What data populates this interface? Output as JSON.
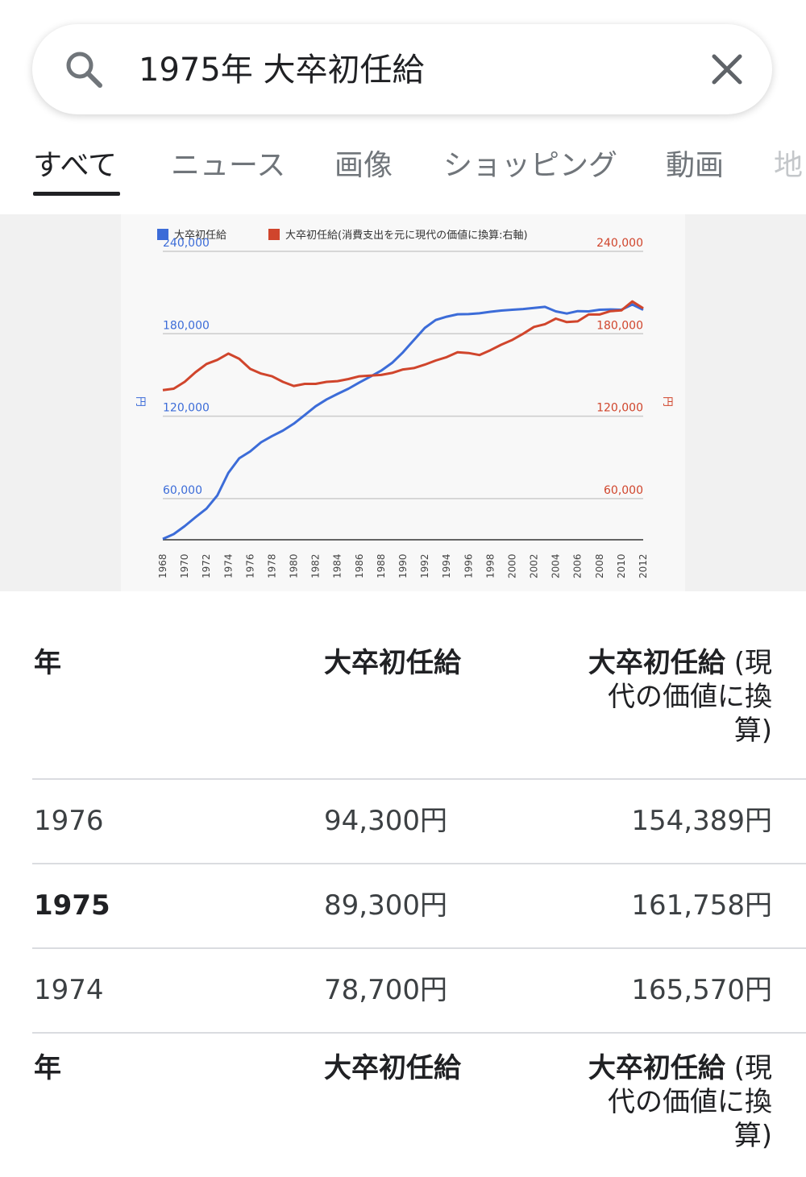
{
  "search": {
    "query": "1975年 大卒初任給"
  },
  "tabs": [
    {
      "label": "すべて",
      "active": true
    },
    {
      "label": "ニュース"
    },
    {
      "label": "画像"
    },
    {
      "label": "ショッピング"
    },
    {
      "label": "動画"
    },
    {
      "label": "地"
    }
  ],
  "chart_data": {
    "type": "line",
    "legend": [
      "大卒初任給",
      "大卒初任給(消費支出を元に現代の価値に換算:右軸)"
    ],
    "y_left_label": "円",
    "y_right_label": "円",
    "y_ticks": [
      "60,000",
      "120,000",
      "180,000",
      "240,000"
    ],
    "ylim": [
      30000,
      240000
    ],
    "x_ticks": [
      "1968",
      "1970",
      "1972",
      "1974",
      "1976",
      "1978",
      "1980",
      "1982",
      "1984",
      "1986",
      "1988",
      "1990",
      "1992",
      "1994",
      "1996",
      "1998",
      "2000",
      "2002",
      "2004",
      "2006",
      "2008",
      "2010",
      "2012"
    ],
    "x": [
      1968,
      1969,
      1970,
      1971,
      1972,
      1973,
      1974,
      1975,
      1976,
      1977,
      1978,
      1979,
      1980,
      1981,
      1982,
      1983,
      1984,
      1985,
      1986,
      1987,
      1988,
      1989,
      1990,
      1991,
      1992,
      1993,
      1994,
      1995,
      1996,
      1997,
      1998,
      1999,
      2000,
      2001,
      2002,
      2003,
      2004,
      2005,
      2006,
      2007,
      2008,
      2009,
      2010,
      2011,
      2012
    ],
    "series": [
      {
        "name": "大卒初任給",
        "color": "#3c6cd8",
        "values": [
          30600,
          34100,
          39900,
          46400,
          52700,
          62300,
          78700,
          89300,
          94300,
          101000,
          105500,
          109500,
          114500,
          120800,
          127200,
          132200,
          136200,
          140000,
          144500,
          148700,
          153100,
          158800,
          166500,
          175400,
          184300,
          190000,
          192400,
          194200,
          194300,
          194900,
          196000,
          196900,
          197500,
          198000,
          198800,
          199600,
          196300,
          194700,
          196500,
          196300,
          197500,
          197700,
          197500,
          201300,
          197500
        ]
      },
      {
        "name": "大卒初任給(消費支出を元に現代の価値に換算:右軸)",
        "color": "#d0452c",
        "values": [
          139000,
          140000,
          145000,
          152000,
          158000,
          161000,
          165570,
          161758,
          154389,
          151000,
          149000,
          145000,
          142000,
          143500,
          143500,
          145000,
          145500,
          147000,
          149000,
          149500,
          150000,
          151500,
          154000,
          155000,
          157500,
          160500,
          163000,
          166500,
          166000,
          164500,
          168000,
          172000,
          175500,
          180000,
          185000,
          187000,
          191000,
          188500,
          189000,
          194000,
          194000,
          196500,
          197000,
          203500,
          198500
        ]
      }
    ]
  },
  "table": {
    "headers": {
      "year": "年",
      "salary": "大卒初任給",
      "real_bold": "大卒初任給",
      "real_rest": " (現代の価値に換算)"
    },
    "rows": [
      {
        "year": "1976",
        "salary": "94,300円",
        "real": "154,389円",
        "highlight": false
      },
      {
        "year": "1975",
        "salary": "89,300円",
        "real": "161,758円",
        "highlight": true
      },
      {
        "year": "1974",
        "salary": "78,700円",
        "real": "165,570円",
        "highlight": false
      }
    ]
  }
}
